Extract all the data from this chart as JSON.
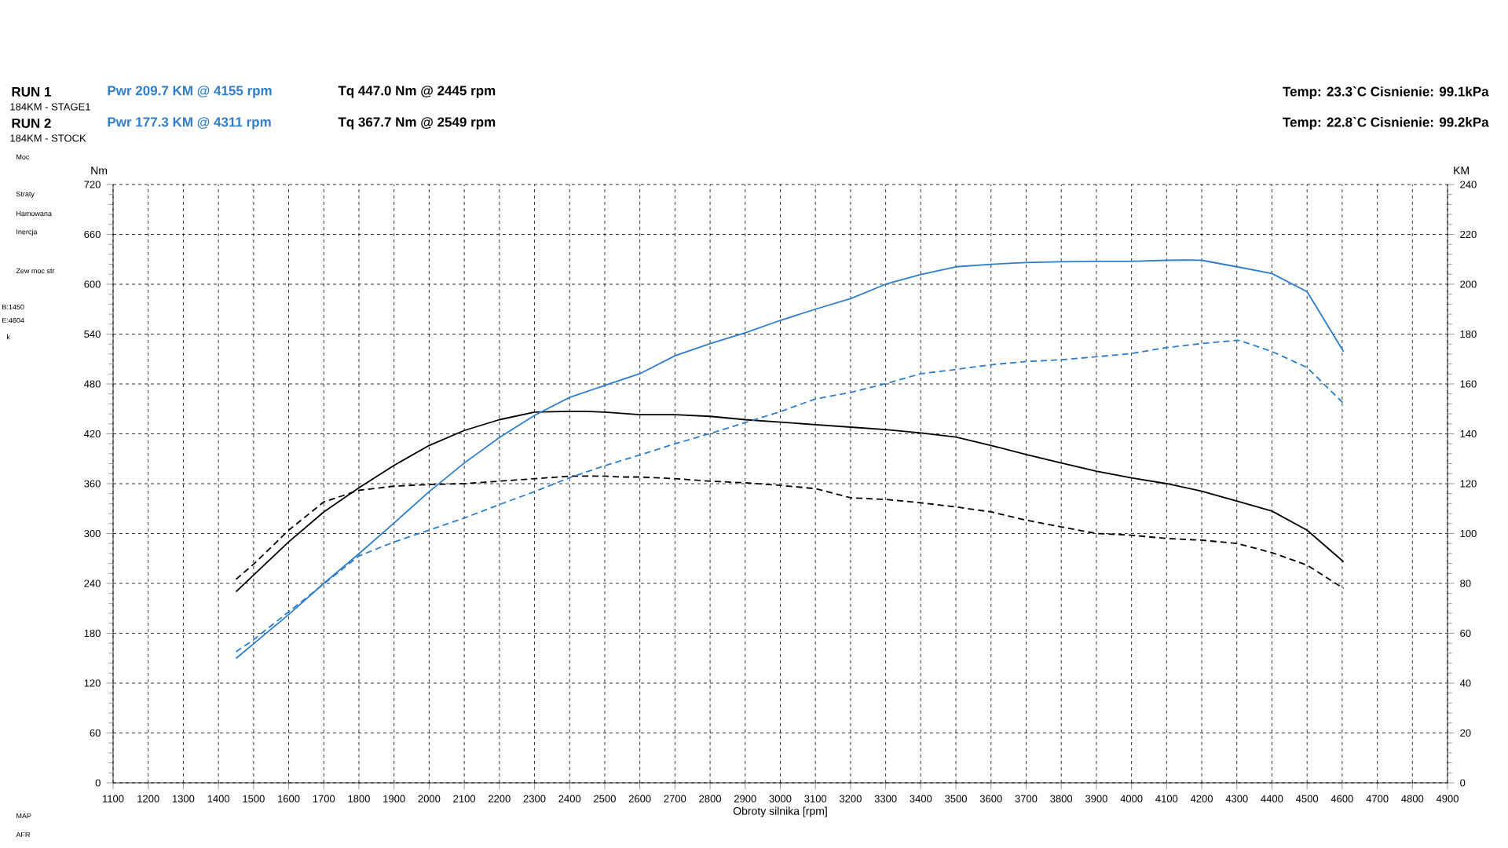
{
  "chart_data": {
    "type": "line",
    "xlabel": "Obroty silnika [rpm]",
    "ylabel": "Nm",
    "y2label": "KM",
    "xlim": [
      1100,
      4900
    ],
    "xticks": [
      1100,
      1200,
      1300,
      1400,
      1500,
      1600,
      1700,
      1800,
      1900,
      2000,
      2100,
      2200,
      2300,
      2400,
      2500,
      2600,
      2700,
      2800,
      2900,
      3000,
      3100,
      3200,
      3300,
      3400,
      3500,
      3600,
      3700,
      3800,
      3900,
      4000,
      4100,
      4200,
      4300,
      4400,
      4500,
      4600,
      4700,
      4800,
      4900
    ],
    "ylim": [
      0,
      720
    ],
    "yticks": [
      0,
      60,
      120,
      180,
      240,
      300,
      360,
      420,
      480,
      540,
      600,
      660,
      720
    ],
    "y2lim": [
      0,
      240
    ],
    "y2ticks": [
      0,
      20,
      40,
      60,
      80,
      100,
      120,
      140,
      160,
      180,
      200,
      220,
      240
    ],
    "grid": true,
    "annotations": [
      "RUN 1",
      "Pwr  209.7 KM @ 4155 rpm",
      "Tq 447.0 Nm @ 2445 rpm",
      "184KM - STAGE1",
      "RUN 2",
      "Pwr  177.3 KM @ 4311 rpm",
      "Tq 367.7 Nm @ 2549 rpm",
      "184KM - STOCK",
      "Temp: 23.3`C   Cisnienie: 99.1kPa",
      "Temp: 22.8`C   Cisnienie: 99.2kPa",
      "Moc",
      "Straty",
      "Hamowana",
      "Inercja",
      "Zew moc str",
      "B:1450",
      "E:4604",
      "k",
      "MAP",
      "AFR"
    ],
    "series": [
      {
        "color": "#000000",
        "line_style": "solid",
        "x": [
          1450,
          1500,
          1600,
          1700,
          1800,
          1900,
          2000,
          2100,
          2200,
          2300,
          2400,
          2445,
          2500,
          2600,
          2700,
          2800,
          2900,
          3000,
          3100,
          3200,
          3300,
          3400,
          3500,
          3600,
          3700,
          3800,
          3900,
          4000,
          4100,
          4200,
          4300,
          4400,
          4500,
          4604
        ],
        "values": [
          230,
          250,
          290,
          326,
          355,
          382,
          406,
          424,
          437,
          446,
          447,
          447,
          446,
          443,
          443,
          441,
          437,
          434,
          431,
          428,
          425,
          421,
          416,
          406,
          395,
          385,
          375,
          367,
          360,
          351,
          339,
          327,
          304,
          266
        ]
      },
      {
        "color": "#000000",
        "line_style": "dashed",
        "x": [
          1450,
          1500,
          1600,
          1700,
          1800,
          1900,
          2000,
          2100,
          2200,
          2300,
          2400,
          2500,
          2549,
          2600,
          2700,
          2800,
          2900,
          3000,
          3100,
          3200,
          3300,
          3400,
          3500,
          3600,
          3700,
          3800,
          3900,
          4000,
          4100,
          4200,
          4300,
          4400,
          4500,
          4604
        ],
        "values": [
          245,
          263,
          304,
          338,
          352,
          357,
          359,
          360,
          363,
          366,
          369,
          369,
          368,
          368,
          366,
          363,
          361,
          358,
          354,
          343,
          341,
          337,
          332,
          326,
          316,
          308,
          300,
          298,
          294,
          292,
          288,
          277,
          262,
          234
        ]
      },
      {
        "color": "#2e7dc8",
        "line_style": "solid",
        "axis": "y2",
        "x": [
          1450,
          1500,
          1600,
          1700,
          1800,
          1900,
          2000,
          2100,
          2200,
          2300,
          2400,
          2500,
          2600,
          2700,
          2800,
          2900,
          3000,
          3100,
          3200,
          3300,
          3400,
          3500,
          3600,
          3700,
          3800,
          3900,
          4000,
          4100,
          4155,
          4200,
          4300,
          4400,
          4500,
          4604
        ],
        "values": [
          49.9,
          55.8,
          67.5,
          80,
          91.9,
          104.2,
          116.8,
          128.3,
          138.5,
          147.4,
          154.6,
          159.4,
          164.1,
          171.3,
          176.2,
          180.5,
          185.5,
          190,
          194.2,
          200,
          203.9,
          207,
          208,
          208.7,
          209,
          209.2,
          209.2,
          209.6,
          209.7,
          209.6,
          207,
          204.3,
          197,
          173
        ]
      },
      {
        "color": "#2e7dc8",
        "line_style": "dashed",
        "axis": "y2",
        "x": [
          1450,
          1500,
          1600,
          1700,
          1800,
          1900,
          2000,
          2100,
          2200,
          2300,
          2400,
          2500,
          2600,
          2700,
          2800,
          2900,
          3000,
          3100,
          3200,
          3300,
          3400,
          3500,
          3600,
          3700,
          3800,
          3900,
          4000,
          4100,
          4200,
          4300,
          4311,
          4400,
          4500,
          4604
        ],
        "values": [
          52.6,
          57.4,
          68.6,
          79.8,
          91,
          96.6,
          101.4,
          106.2,
          111.6,
          116.8,
          122.4,
          127.2,
          131.5,
          136,
          140.1,
          144.5,
          148.9,
          154,
          156.6,
          160.1,
          164.1,
          165.8,
          167.7,
          169,
          169.7,
          170.9,
          172.2,
          174.6,
          176.2,
          177.5,
          177.3,
          173,
          166.6,
          152.2
        ]
      }
    ]
  }
}
